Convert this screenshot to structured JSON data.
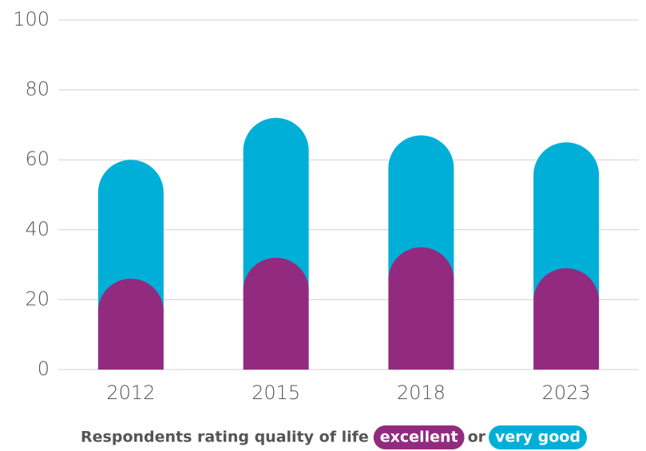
{
  "chart_data": {
    "type": "bar",
    "stacked": true,
    "categories": [
      "2012",
      "2015",
      "2018",
      "2023"
    ],
    "series": [
      {
        "name": "excellent",
        "color": "#922b80",
        "values": [
          26,
          32,
          35,
          29
        ]
      },
      {
        "name": "very good",
        "color": "#00afd7",
        "values": [
          34,
          40,
          32,
          36
        ]
      }
    ],
    "ylim": [
      0,
      100
    ],
    "yticks": [
      0,
      20,
      40,
      60,
      80,
      100
    ],
    "grid": true,
    "caption": "Respondents rating quality of life",
    "legend_joiner": "or"
  }
}
